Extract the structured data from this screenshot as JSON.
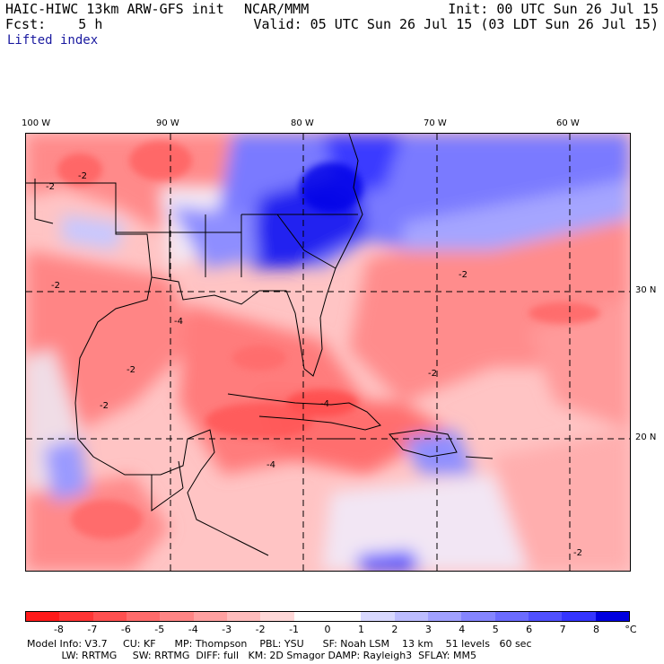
{
  "header": {
    "model": "HAIC-HIWC 13km ARW-GFS init",
    "org": "NCAR/MMM",
    "init": "Init: 00 UTC Sun 26 Jul 15",
    "fcst": "Fcst:    5 h",
    "valid": "Valid: 05 UTC Sun 26 Jul 15 (03 LDT Sun 26 Jul 15)",
    "field": "Lifted index"
  },
  "map": {
    "lon_labels": [
      "100 W",
      "90 W",
      "80 W",
      "70 W",
      "60 W"
    ],
    "lat_labels": [
      "30 N",
      "20 N"
    ],
    "contour_labels": [
      "-2",
      "-2",
      "-2",
      "-2",
      "-2",
      "-2",
      "-2",
      "-4",
      "-4",
      "-4",
      "-2"
    ]
  },
  "colorbar": {
    "unit": "°C",
    "labels": [
      "-8",
      "-7",
      "-6",
      "-5",
      "-4",
      "-3",
      "-2",
      "-1",
      "0",
      "1",
      "2",
      "3",
      "4",
      "5",
      "6",
      "7",
      "8"
    ],
    "colors": [
      "#ff1a1a",
      "#ff3535",
      "#ff5050",
      "#ff6b6b",
      "#ff8585",
      "#ffa0a0",
      "#ffbcbc",
      "#ffd8d8",
      "#ffffff",
      "#ffffff",
      "#d8d8ff",
      "#bcbcff",
      "#a0a0ff",
      "#8585ff",
      "#6b6bff",
      "#5050ff",
      "#3535ff",
      "#0000e0"
    ]
  },
  "footer": {
    "line1": "Model Info: V3.7     CU: KF      MP: Thompson    PBL: YSU      SF: Noah LSM    13 km    51 levels   60 sec",
    "line2": "           LW: RRTMG     SW: RRTMG  DIFF: full   KM: 2D Smagor DAMP: Rayleigh3  SFLAY: MM5"
  }
}
